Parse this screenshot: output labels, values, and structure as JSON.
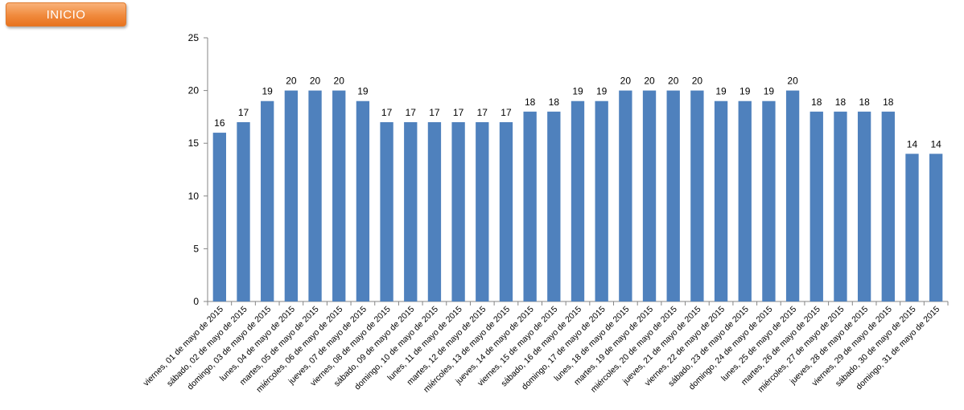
{
  "header": {
    "inicio_label": "INICIO"
  },
  "chart_data": {
    "type": "bar",
    "categories": [
      "viernes, 01 de mayo de 2015",
      "sábado, 02 de mayo de 2015",
      "domingo, 03 de mayo de 2015",
      "lunes, 04 de mayo de 2015",
      "martes, 05 de mayo de 2015",
      "miércoles, 06 de mayo de 2015",
      "jueves, 07 de mayo de 2015",
      "viernes, 08 de mayo de 2015",
      "sábado, 09 de mayo de 2015",
      "domingo, 10 de mayo de 2015",
      "lunes, 11 de mayo de 2015",
      "martes, 12 de mayo de 2015",
      "miércoles, 13 de mayo de 2015",
      "jueves, 14 de mayo de 2015",
      "viernes, 15 de mayo de 2015",
      "sábado, 16 de mayo de 2015",
      "domingo, 17 de mayo de 2015",
      "lunes, 18 de mayo de 2015",
      "martes, 19 de mayo de 2015",
      "miércoles, 20 de mayo de 2015",
      "jueves, 21 de mayo de 2015",
      "viernes, 22 de mayo de 2015",
      "sábado, 23 de mayo de 2015",
      "domingo, 24 de mayo de 2015",
      "lunes, 25 de mayo de 2015",
      "martes, 26 de mayo de 2015",
      "miércoles, 27 de mayo de 2015",
      "jueves, 28 de mayo de 2015",
      "viernes, 29 de mayo de 2015",
      "sábado, 30 de mayo de 2015",
      "domingo, 31 de mayo de 2015"
    ],
    "values": [
      16,
      17,
      19,
      20,
      20,
      20,
      19,
      17,
      17,
      17,
      17,
      17,
      17,
      18,
      18,
      19,
      19,
      20,
      20,
      20,
      20,
      19,
      19,
      19,
      20,
      18,
      18,
      18,
      18,
      14,
      14
    ],
    "yticks": [
      0,
      5,
      10,
      15,
      20,
      25
    ],
    "ylim": [
      0,
      25
    ],
    "title": "",
    "xlabel": "",
    "ylabel": "",
    "grid": false,
    "data_labels": true,
    "bar_color": "#4f81bd"
  }
}
